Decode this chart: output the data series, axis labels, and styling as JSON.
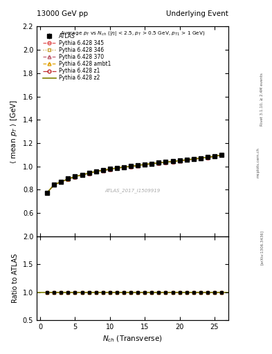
{
  "title_left": "13000 GeV pp",
  "title_right": "Underlying Event",
  "annotation": "Average $p_T$ vs $N_{ch}$ ($|\\eta|$ < 2.5, $p_T$ > 0.5 GeV, $p_{T1}$ > 1 GeV)",
  "watermark": "ATLAS_2017_I1509919",
  "right_label1": "Rivet 3.1.10, ≥ 2.4M events",
  "right_label2": "mcplots.cern.ch",
  "right_label3": "[arXiv:1306.3436]",
  "ylabel_main": "$\\langle$ mean $p_T$ $\\rangle$ [GeV]",
  "ylabel_ratio": "Ratio to ATLAS",
  "xlabel": "$N_{ch}$ (Transverse)",
  "ylim_main": [
    0.4,
    2.2
  ],
  "ylim_ratio": [
    0.5,
    2.0
  ],
  "yticks_main": [
    0.6,
    0.8,
    1.0,
    1.2,
    1.4,
    1.6,
    1.8,
    2.0,
    2.2
  ],
  "yticks_ratio": [
    0.5,
    1.0,
    1.5,
    2.0
  ],
  "xlim": [
    -0.5,
    27
  ],
  "xticks": [
    0,
    5,
    10,
    15,
    20,
    25
  ],
  "nch": [
    1,
    2,
    3,
    4,
    5,
    6,
    7,
    8,
    9,
    10,
    11,
    12,
    13,
    14,
    15,
    16,
    17,
    18,
    19,
    20,
    21,
    22,
    23,
    24,
    25,
    26
  ],
  "atlas_data": [
    0.775,
    0.845,
    0.87,
    0.895,
    0.915,
    0.93,
    0.945,
    0.96,
    0.968,
    0.978,
    0.988,
    0.995,
    1.002,
    1.01,
    1.018,
    1.025,
    1.032,
    1.038,
    1.045,
    1.05,
    1.058,
    1.065,
    1.072,
    1.08,
    1.088,
    1.1
  ],
  "atlas_err": [
    0.005,
    0.003,
    0.003,
    0.003,
    0.003,
    0.003,
    0.003,
    0.003,
    0.003,
    0.003,
    0.003,
    0.003,
    0.003,
    0.003,
    0.003,
    0.003,
    0.003,
    0.003,
    0.003,
    0.003,
    0.003,
    0.003,
    0.003,
    0.003,
    0.003,
    0.003
  ],
  "series": [
    {
      "label": "Pythia 6.428 345",
      "color": "#e05050",
      "linestyle": "dashed",
      "marker": "o",
      "fillstyle": "none",
      "data": [
        0.775,
        0.843,
        0.868,
        0.892,
        0.912,
        0.928,
        0.942,
        0.957,
        0.966,
        0.976,
        0.986,
        0.993,
        1.0,
        1.008,
        1.016,
        1.023,
        1.03,
        1.036,
        1.043,
        1.049,
        1.056,
        1.063,
        1.07,
        1.078,
        1.086,
        1.098
      ]
    },
    {
      "label": "Pythia 6.428 346",
      "color": "#c8a030",
      "linestyle": "dotted",
      "marker": "s",
      "fillstyle": "none",
      "data": [
        0.776,
        0.844,
        0.869,
        0.893,
        0.913,
        0.929,
        0.943,
        0.958,
        0.967,
        0.977,
        0.987,
        0.994,
        1.001,
        1.009,
        1.017,
        1.024,
        1.031,
        1.037,
        1.044,
        1.05,
        1.057,
        1.064,
        1.071,
        1.079,
        1.087,
        1.099
      ]
    },
    {
      "label": "Pythia 6.428 370",
      "color": "#c06070",
      "linestyle": "dashed",
      "marker": "^",
      "fillstyle": "none",
      "data": [
        0.774,
        0.842,
        0.867,
        0.891,
        0.911,
        0.927,
        0.941,
        0.956,
        0.965,
        0.975,
        0.985,
        0.992,
        0.999,
        1.007,
        1.015,
        1.022,
        1.029,
        1.035,
        1.042,
        1.048,
        1.055,
        1.062,
        1.069,
        1.077,
        1.085,
        1.097
      ]
    },
    {
      "label": "Pythia 6.428 ambt1",
      "color": "#e0a000",
      "linestyle": "dashed",
      "marker": "^",
      "fillstyle": "none",
      "data": [
        0.776,
        0.845,
        0.87,
        0.894,
        0.914,
        0.93,
        0.944,
        0.959,
        0.968,
        0.978,
        0.988,
        0.995,
        1.002,
        1.01,
        1.018,
        1.025,
        1.032,
        1.038,
        1.045,
        1.051,
        1.058,
        1.065,
        1.072,
        1.08,
        1.088,
        1.1
      ]
    },
    {
      "label": "Pythia 6.428 z1",
      "color": "#c03030",
      "linestyle": "dashdot",
      "marker": "o",
      "fillstyle": "none",
      "data": [
        0.775,
        0.843,
        0.868,
        0.892,
        0.912,
        0.928,
        0.942,
        0.957,
        0.966,
        0.976,
        0.986,
        0.993,
        1.0,
        1.008,
        1.016,
        1.023,
        1.03,
        1.036,
        1.043,
        1.049,
        1.056,
        1.063,
        1.07,
        1.078,
        1.086,
        1.098
      ]
    },
    {
      "label": "Pythia 6.428 z2",
      "color": "#808000",
      "linestyle": "solid",
      "marker": null,
      "fillstyle": "none",
      "data": [
        0.776,
        0.844,
        0.869,
        0.893,
        0.913,
        0.929,
        0.943,
        0.958,
        0.967,
        0.977,
        0.987,
        0.994,
        1.001,
        1.009,
        1.017,
        1.024,
        1.031,
        1.037,
        1.044,
        1.05,
        1.057,
        1.064,
        1.071,
        1.079,
        1.087,
        1.099
      ]
    }
  ]
}
